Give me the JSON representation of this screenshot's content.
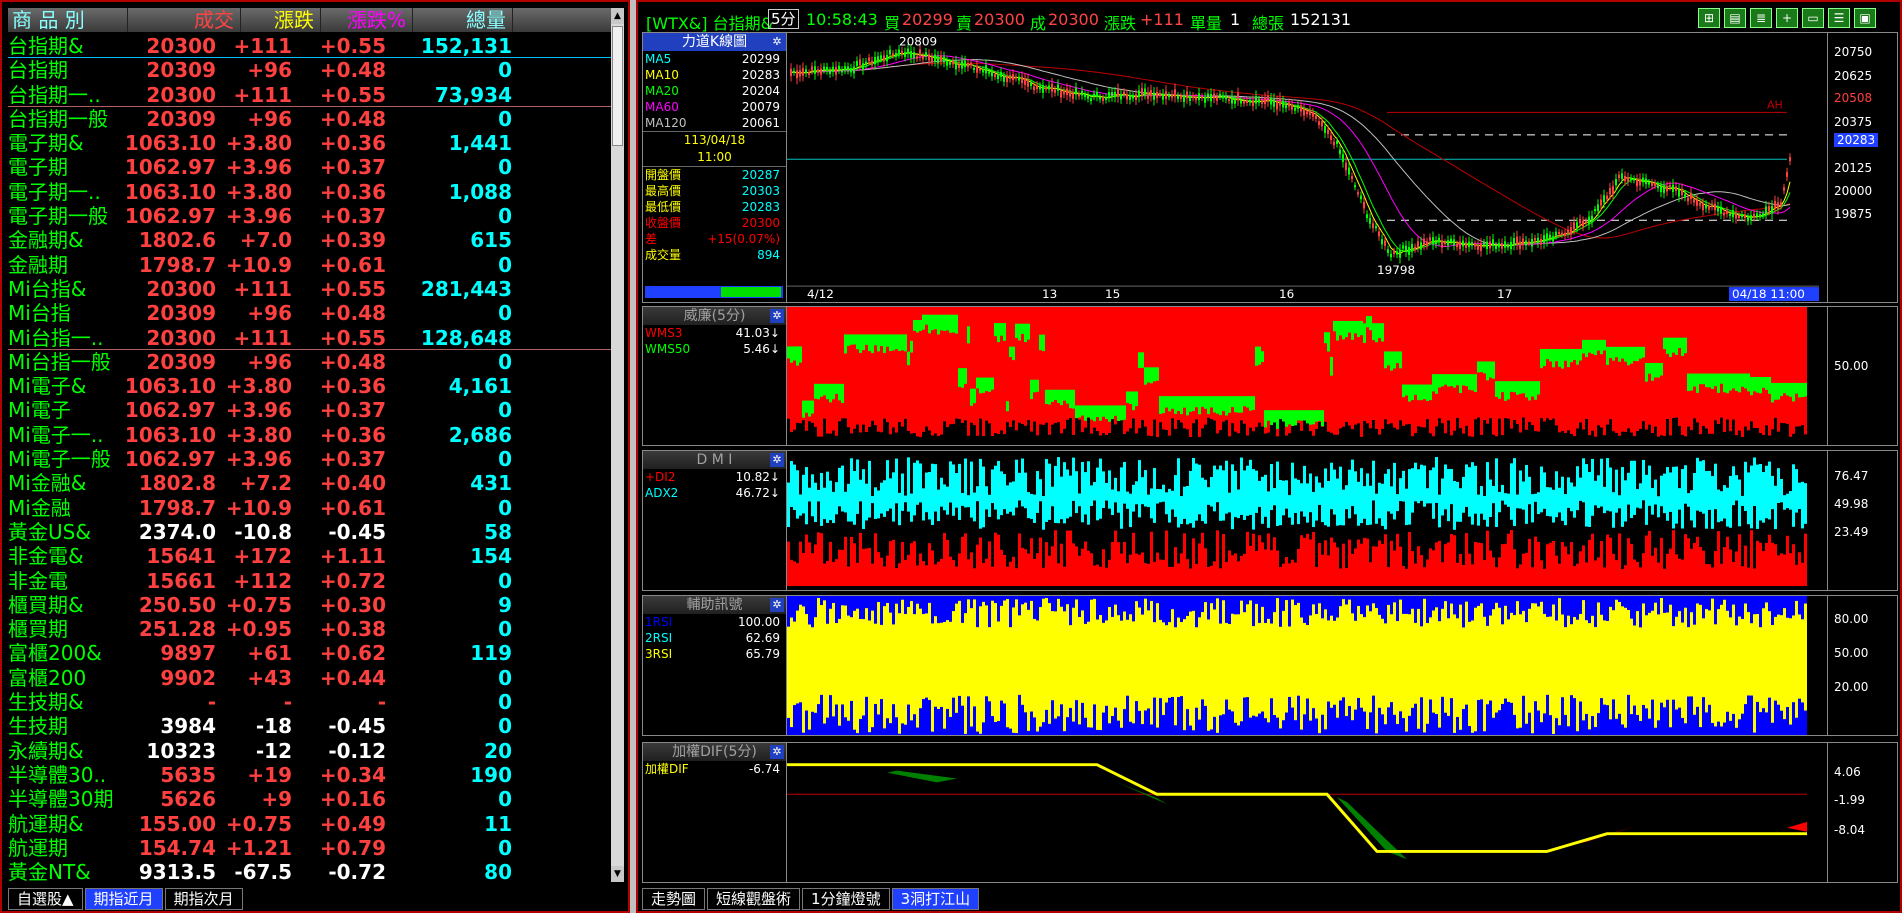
{
  "quote": {
    "headers": [
      "商 品 別",
      "成交",
      "漲跌",
      "漲跌%",
      "總量"
    ],
    "rows": [
      {
        "name": "台指期&",
        "price": "20300",
        "chg": "+111",
        "pct": "+0.55",
        "vol": "152,131",
        "dir": "up"
      },
      {
        "name": "台指期",
        "price": "20309",
        "chg": "+96",
        "pct": "+0.48",
        "vol": "0",
        "dir": "up"
      },
      {
        "name": "台指期一..",
        "price": "20300",
        "chg": "+111",
        "pct": "+0.55",
        "vol": "73,934",
        "dir": "up"
      },
      {
        "name": "台指期一般",
        "price": "20309",
        "chg": "+96",
        "pct": "+0.48",
        "vol": "0",
        "dir": "up"
      },
      {
        "name": "電子期&",
        "price": "1063.10",
        "chg": "+3.80",
        "pct": "+0.36",
        "vol": "1,441",
        "dir": "up"
      },
      {
        "name": "電子期",
        "price": "1062.97",
        "chg": "+3.96",
        "pct": "+0.37",
        "vol": "0",
        "dir": "up"
      },
      {
        "name": "電子期一..",
        "price": "1063.10",
        "chg": "+3.80",
        "pct": "+0.36",
        "vol": "1,088",
        "dir": "up"
      },
      {
        "name": "電子期一般",
        "price": "1062.97",
        "chg": "+3.96",
        "pct": "+0.37",
        "vol": "0",
        "dir": "up"
      },
      {
        "name": "金融期&",
        "price": "1802.6",
        "chg": "+7.0",
        "pct": "+0.39",
        "vol": "615",
        "dir": "up"
      },
      {
        "name": "金融期",
        "price": "1798.7",
        "chg": "+10.9",
        "pct": "+0.61",
        "vol": "0",
        "dir": "up"
      },
      {
        "name": "Mi台指&",
        "price": "20300",
        "chg": "+111",
        "pct": "+0.55",
        "vol": "281,443",
        "dir": "up"
      },
      {
        "name": "Mi台指",
        "price": "20309",
        "chg": "+96",
        "pct": "+0.48",
        "vol": "0",
        "dir": "up"
      },
      {
        "name": "Mi台指一..",
        "price": "20300",
        "chg": "+111",
        "pct": "+0.55",
        "vol": "128,648",
        "dir": "up"
      },
      {
        "name": "Mi台指一般",
        "price": "20309",
        "chg": "+96",
        "pct": "+0.48",
        "vol": "0",
        "dir": "up"
      },
      {
        "name": "Mi電子&",
        "price": "1063.10",
        "chg": "+3.80",
        "pct": "+0.36",
        "vol": "4,161",
        "dir": "up"
      },
      {
        "name": "Mi電子",
        "price": "1062.97",
        "chg": "+3.96",
        "pct": "+0.37",
        "vol": "0",
        "dir": "up"
      },
      {
        "name": "Mi電子一..",
        "price": "1063.10",
        "chg": "+3.80",
        "pct": "+0.36",
        "vol": "2,686",
        "dir": "up"
      },
      {
        "name": "Mi電子一般",
        "price": "1062.97",
        "chg": "+3.96",
        "pct": "+0.37",
        "vol": "0",
        "dir": "up"
      },
      {
        "name": "Mi金融&",
        "price": "1802.8",
        "chg": "+7.2",
        "pct": "+0.40",
        "vol": "431",
        "dir": "up"
      },
      {
        "name": "Mi金融",
        "price": "1798.7",
        "chg": "+10.9",
        "pct": "+0.61",
        "vol": "0",
        "dir": "up"
      },
      {
        "name": "黃金US&",
        "price": "2374.0",
        "chg": "-10.8",
        "pct": "-0.45",
        "vol": "58",
        "dir": "dn"
      },
      {
        "name": "非金電&",
        "price": "15641",
        "chg": "+172",
        "pct": "+1.11",
        "vol": "154",
        "dir": "up"
      },
      {
        "name": "非金電",
        "price": "15661",
        "chg": "+112",
        "pct": "+0.72",
        "vol": "0",
        "dir": "up"
      },
      {
        "name": "櫃買期&",
        "price": "250.50",
        "chg": "+0.75",
        "pct": "+0.30",
        "vol": "9",
        "dir": "up"
      },
      {
        "name": "櫃買期",
        "price": "251.28",
        "chg": "+0.95",
        "pct": "+0.38",
        "vol": "0",
        "dir": "up"
      },
      {
        "name": "富櫃200&",
        "price": "9897",
        "chg": "+61",
        "pct": "+0.62",
        "vol": "119",
        "dir": "up"
      },
      {
        "name": "富櫃200",
        "price": "9902",
        "chg": "+43",
        "pct": "+0.44",
        "vol": "0",
        "dir": "up"
      },
      {
        "name": "生技期&",
        "price": "-",
        "chg": "-",
        "pct": "-",
        "vol": "0",
        "dir": "flat"
      },
      {
        "name": "生技期",
        "price": "3984",
        "chg": "-18",
        "pct": "-0.45",
        "vol": "0",
        "dir": "dn"
      },
      {
        "name": "永續期&",
        "price": "10323",
        "chg": "-12",
        "pct": "-0.12",
        "vol": "20",
        "dir": "dn"
      },
      {
        "name": "半導體30..",
        "price": "5635",
        "chg": "+19",
        "pct": "+0.34",
        "vol": "190",
        "dir": "up"
      },
      {
        "name": "半導體30期",
        "price": "5626",
        "chg": "+9",
        "pct": "+0.16",
        "vol": "0",
        "dir": "up"
      },
      {
        "name": "航運期&",
        "price": "155.00",
        "chg": "+0.75",
        "pct": "+0.49",
        "vol": "11",
        "dir": "up"
      },
      {
        "name": "航運期",
        "price": "154.74",
        "chg": "+1.21",
        "pct": "+0.79",
        "vol": "0",
        "dir": "up"
      },
      {
        "name": "黃金NT&",
        "price": "9313.5",
        "chg": "-67.5",
        "pct": "-0.72",
        "vol": "80",
        "dir": "dn"
      }
    ],
    "tabs": [
      "自選股▲",
      "期指近月",
      "期指次月"
    ],
    "active_tab": 1
  },
  "titlebar": {
    "symbol": "[WTX&] 台指期&",
    "interval": "5分",
    "time": "10:58:43",
    "bid_label": "買",
    "bid": "20299",
    "ask_label": "賣",
    "ask": "20300",
    "deal_label": "成",
    "deal": "20300",
    "chg_label": "漲跌",
    "chg": "+111",
    "unit_label": "單量",
    "unit": "1",
    "total_label": "總張",
    "total": "152131"
  },
  "kline": {
    "title": "力道K線圖",
    "ma": [
      {
        "name": "MA5",
        "value": "20299",
        "color": "#00ffff"
      },
      {
        "name": "MA10",
        "value": "20283",
        "color": "#ffff00"
      },
      {
        "name": "MA20",
        "value": "20204",
        "color": "#00ff00"
      },
      {
        "name": "MA60",
        "value": "20079",
        "color": "#ff00ff"
      },
      {
        "name": "MA120",
        "value": "20061",
        "color": "#c0c0c0"
      }
    ],
    "date": "113/04/18",
    "time": "11:00",
    "stats": [
      {
        "k": "開盤價",
        "v": "20287",
        "color": "#ffff00"
      },
      {
        "k": "最高價",
        "v": "20303",
        "color": "#ffff00"
      },
      {
        "k": "最低價",
        "v": "20283",
        "color": "#ffff00"
      },
      {
        "k": "收盤價",
        "v": "20300",
        "color": "#ff0000"
      },
      {
        "k": "差",
        "v": "+15(0.07%)",
        "color": "#ff0000"
      },
      {
        "k": "成交量",
        "v": "894",
        "color": "#ffff00"
      }
    ],
    "yticks": [
      "20750",
      "20625",
      "20508",
      "20375",
      "20283",
      "20125",
      "20000",
      "19875"
    ],
    "high_label": "20809",
    "low_label": "19798",
    "ah_label": "AH",
    "xlabels": [
      "4/12",
      "13",
      "15",
      "16",
      "17",
      "18",
      "04/18 11:00"
    ]
  },
  "wms": {
    "title": "威廉(5分)",
    "series": [
      {
        "name": "WMS3",
        "value": "41.03↓",
        "color": "#ff0000"
      },
      {
        "name": "WMS50",
        "value": "5.46↓",
        "color": "#00ff00"
      }
    ],
    "yticks": [
      "50.00"
    ]
  },
  "dmi": {
    "title": "D M I",
    "series": [
      {
        "name": "+DI2",
        "value": "10.82↓",
        "color": "#ff0000"
      },
      {
        "name": "ADX2",
        "value": "46.72↓",
        "color": "#00ffff"
      }
    ],
    "yticks": [
      "76.47",
      "49.98",
      "23.49"
    ]
  },
  "rsi": {
    "title": "輔助訊號",
    "series": [
      {
        "name": "1RSI",
        "value": "100.00",
        "color": "#0000ff"
      },
      {
        "name": "2RSI",
        "value": "62.69",
        "color": "#00ffff"
      },
      {
        "name": "3RSI",
        "value": "65.79",
        "color": "#ffff00"
      }
    ],
    "yticks": [
      "80.00",
      "50.00",
      "20.00"
    ]
  },
  "dif": {
    "title": "加權DIF(5分)",
    "series": [
      {
        "name": "加權DIF",
        "value": "-6.74",
        "color": "#ffff00"
      }
    ],
    "yticks": [
      "4.06",
      "-1.99",
      "-8.04"
    ]
  },
  "bottom_tabs": [
    "走勢圖",
    "短線觀盤術",
    "1分鐘燈號",
    "3洞打江山"
  ],
  "bottom_active": 3,
  "colors": {
    "up": "#ff4040",
    "down": "#ffffff",
    "volume": "#00ffff",
    "name": "#00ff00",
    "frame": "#b00000"
  }
}
